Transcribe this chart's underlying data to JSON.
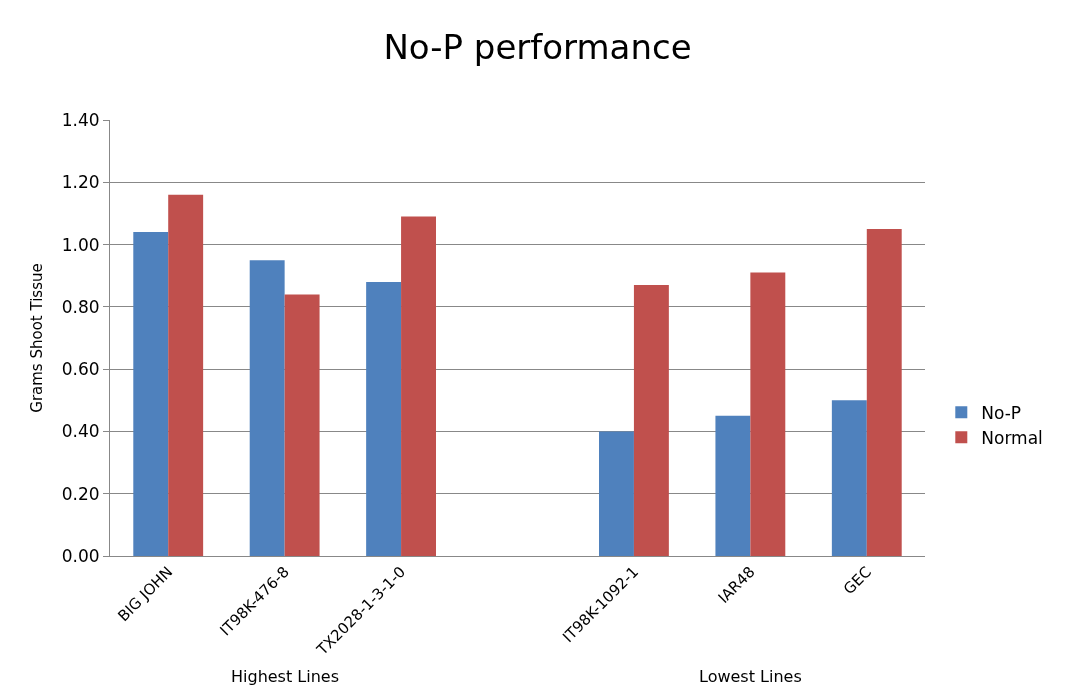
{
  "chart_data": {
    "type": "bar",
    "title": "No-P performance",
    "ylabel": "Grams Shoot Tissue",
    "categories": [
      "BIG JOHN",
      "IT98K-476-8",
      "TX2028-1-3-1-0",
      null,
      "IT98K-1092-1",
      "IAR48",
      "GEC"
    ],
    "series": [
      {
        "name": "No-P",
        "color": "#4f81bd",
        "values": [
          1.04,
          0.95,
          0.88,
          null,
          0.4,
          0.45,
          0.5
        ]
      },
      {
        "name": "Normal",
        "color": "#c0504d",
        "values": [
          1.16,
          0.84,
          1.09,
          null,
          0.87,
          0.91,
          1.05
        ]
      }
    ],
    "ylim": [
      0,
      1.4
    ],
    "yticks": [
      {
        "value": 0,
        "label": "0.00"
      },
      {
        "value": 0.2,
        "label": "0.20"
      },
      {
        "value": 0.4,
        "label": "0.40"
      },
      {
        "value": 0.6,
        "label": "0.60"
      },
      {
        "value": 0.8,
        "label": "0.80"
      },
      {
        "value": 1.0,
        "label": "1.00"
      },
      {
        "value": 1.2,
        "label": "1.20"
      },
      {
        "value": 1.4,
        "label": "1.40"
      }
    ],
    "grid": "y",
    "legend": "right",
    "annotations": [
      "Highest Lines",
      "Lowest Lines"
    ]
  }
}
